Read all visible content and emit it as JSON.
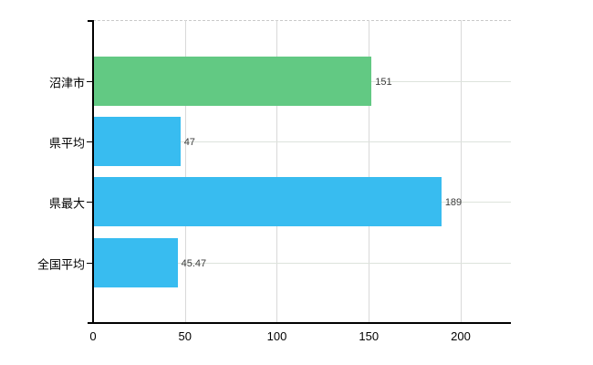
{
  "chart_data": {
    "type": "bar",
    "orientation": "horizontal",
    "title": "",
    "xlabel": "",
    "ylabel": "",
    "categories": [
      "沼津市",
      "県平均",
      "県最大",
      "全国平均"
    ],
    "values": [
      151,
      47,
      189,
      45.47
    ],
    "value_labels": [
      "151",
      "47",
      "189",
      "45.47"
    ],
    "bar_colors": [
      "#62c983",
      "#38bcf0",
      "#38bcf0",
      "#38bcf0"
    ],
    "xlim": [
      0,
      227.3
    ],
    "x_ticks": [
      0,
      50,
      100,
      150,
      200
    ],
    "grid": true,
    "legend": false,
    "colors": {
      "highlight_bar": "#62c983",
      "default_bar": "#38bcf0",
      "axis": "#000000",
      "vertical_grid": "#d9d9d9",
      "horizontal_grid": "#dde3dc",
      "top_border_dashed": "#c9c9c9",
      "value_text": "#3c3c3c",
      "background": "#ffffff"
    }
  }
}
